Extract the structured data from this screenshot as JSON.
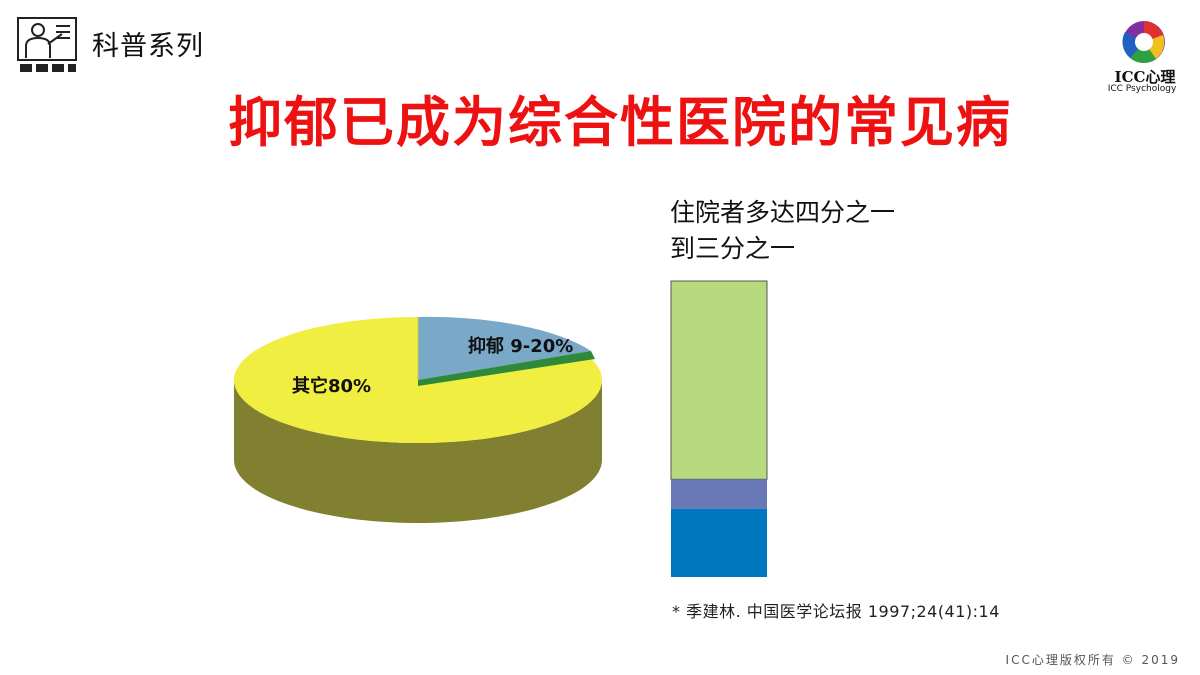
{
  "header": {
    "series_label": "科普系列",
    "title": "抑郁已成为综合性医院的常见病",
    "presenter_icon": "presenter-icon"
  },
  "logo": {
    "name": "ICC心理",
    "subtitle": "ICC Psychology",
    "colors": [
      "#e03030",
      "#f0c020",
      "#2060c0",
      "#30a040",
      "#8030a0"
    ]
  },
  "pie": {
    "labels": [
      "其它80%",
      "抑郁 9-20%"
    ],
    "colors": {
      "other_top": "#f0ee40",
      "other_side": "#808030",
      "depression_top": "#7aa8c8",
      "depression_edge": "#2e8a3a"
    }
  },
  "bar": {
    "caption_line1": "住院者多达四分之一",
    "caption_line2": "到三分之一",
    "colors": [
      "#b8da7e",
      "#6878b4",
      "#0078c0"
    ]
  },
  "reference": "* 季建林. 中国医学论坛报 1997;24(41):14",
  "copyright": "ICC心理版权所有 © 2019",
  "chart_data": [
    {
      "type": "pie",
      "title": "",
      "slices": [
        {
          "label": "其它80%",
          "value": 80
        },
        {
          "label": "抑郁 9-20%",
          "value": 20
        }
      ]
    },
    {
      "type": "bar",
      "title": "住院者多达四分之一到三分之一",
      "stacked": true,
      "segments": [
        {
          "label": "",
          "value": 0.67
        },
        {
          "label": "",
          "value": 0.1
        },
        {
          "label": "",
          "value": 0.23
        }
      ]
    }
  ]
}
